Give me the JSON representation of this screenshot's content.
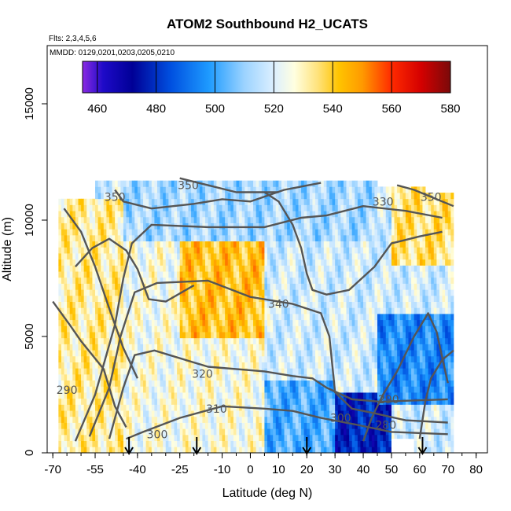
{
  "chart_data": {
    "type": "heatmap",
    "title": "ATOM2 Southbound H2_UCATS",
    "subtitle_lines": [
      "Flts: 2,3,4,5,6",
      "MMDD: 0129,0201,0203,0205,0210"
    ],
    "xlabel": "Latitude (deg N)",
    "ylabel": "Altitude (m)",
    "xlim": [
      -72,
      84
    ],
    "ylim": [
      0,
      17500
    ],
    "x_ticks": [
      -70,
      -55,
      -40,
      -25,
      -10,
      0,
      10,
      20,
      30,
      40,
      50,
      60,
      70,
      80
    ],
    "x_minor_step": 5,
    "y_ticks": [
      0,
      5000,
      10000,
      15000
    ],
    "colorbar": {
      "range": [
        455,
        580
      ],
      "ticks": [
        460,
        480,
        500,
        520,
        540,
        560,
        580
      ],
      "stops": [
        {
          "value": 455,
          "color": "#8a2be2"
        },
        {
          "value": 462,
          "color": "#1e0ac8"
        },
        {
          "value": 472,
          "color": "#000096"
        },
        {
          "value": 485,
          "color": "#0050e0"
        },
        {
          "value": 498,
          "color": "#1e9bff"
        },
        {
          "value": 510,
          "color": "#9cd3ff"
        },
        {
          "value": 520,
          "color": "#dcefff"
        },
        {
          "value": 527,
          "color": "#ffffe0"
        },
        {
          "value": 535,
          "color": "#ffe27a"
        },
        {
          "value": 542,
          "color": "#ffc400"
        },
        {
          "value": 550,
          "color": "#ff9a00"
        },
        {
          "value": 560,
          "color": "#ff2a00"
        },
        {
          "value": 570,
          "color": "#d40000"
        },
        {
          "value": 580,
          "color": "#7a0a0a"
        }
      ]
    },
    "sonde_markers_lat": [
      -43,
      -19,
      20,
      61
    ],
    "field_description": "H2 mixing ratio (ppb) vs latitude and altitude",
    "heatmap_regions": [
      {
        "lat": [
          -68,
          -45
        ],
        "alt": [
          0,
          11000
        ],
        "h2": 532
      },
      {
        "lat": [
          -45,
          -25
        ],
        "alt": [
          0,
          11700
        ],
        "h2": 525
      },
      {
        "lat": [
          -25,
          5
        ],
        "alt": [
          5000,
          9000
        ],
        "h2": 542
      },
      {
        "lat": [
          -25,
          5
        ],
        "alt": [
          0,
          5000
        ],
        "h2": 526
      },
      {
        "lat": [
          5,
          30
        ],
        "alt": [
          0,
          3000
        ],
        "h2": 502
      },
      {
        "lat": [
          30,
          50
        ],
        "alt": [
          0,
          2500
        ],
        "h2": 478
      },
      {
        "lat": [
          45,
          72
        ],
        "alt": [
          2000,
          6000
        ],
        "h2": 495
      },
      {
        "lat": [
          50,
          72
        ],
        "alt": [
          8000,
          11500
        ],
        "h2": 535
      },
      {
        "lat": [
          -45,
          45
        ],
        "alt": [
          9000,
          11700
        ],
        "h2": 512
      }
    ],
    "contours": [
      {
        "level": 280,
        "label_pos": [
          48,
          1200
        ]
      },
      {
        "level": 290,
        "label_pos": [
          -65,
          2700
        ]
      },
      {
        "level": 290,
        "label_pos": [
          49,
          2300
        ]
      },
      {
        "level": 300,
        "label_pos": [
          -33,
          800
        ]
      },
      {
        "level": 300,
        "label_pos": [
          32,
          1500
        ]
      },
      {
        "level": 310,
        "label_pos": [
          -12,
          1900
        ]
      },
      {
        "level": 320,
        "label_pos": [
          -17,
          3400
        ]
      },
      {
        "level": 330,
        "label_pos": [
          47,
          10800
        ]
      },
      {
        "level": 340,
        "label_pos": [
          10,
          6400
        ]
      },
      {
        "level": 350,
        "label_pos": [
          -48,
          11000
        ]
      },
      {
        "level": 350,
        "label_pos": [
          -22,
          11500
        ]
      },
      {
        "level": 350,
        "label_pos": [
          64,
          11000
        ]
      }
    ]
  }
}
